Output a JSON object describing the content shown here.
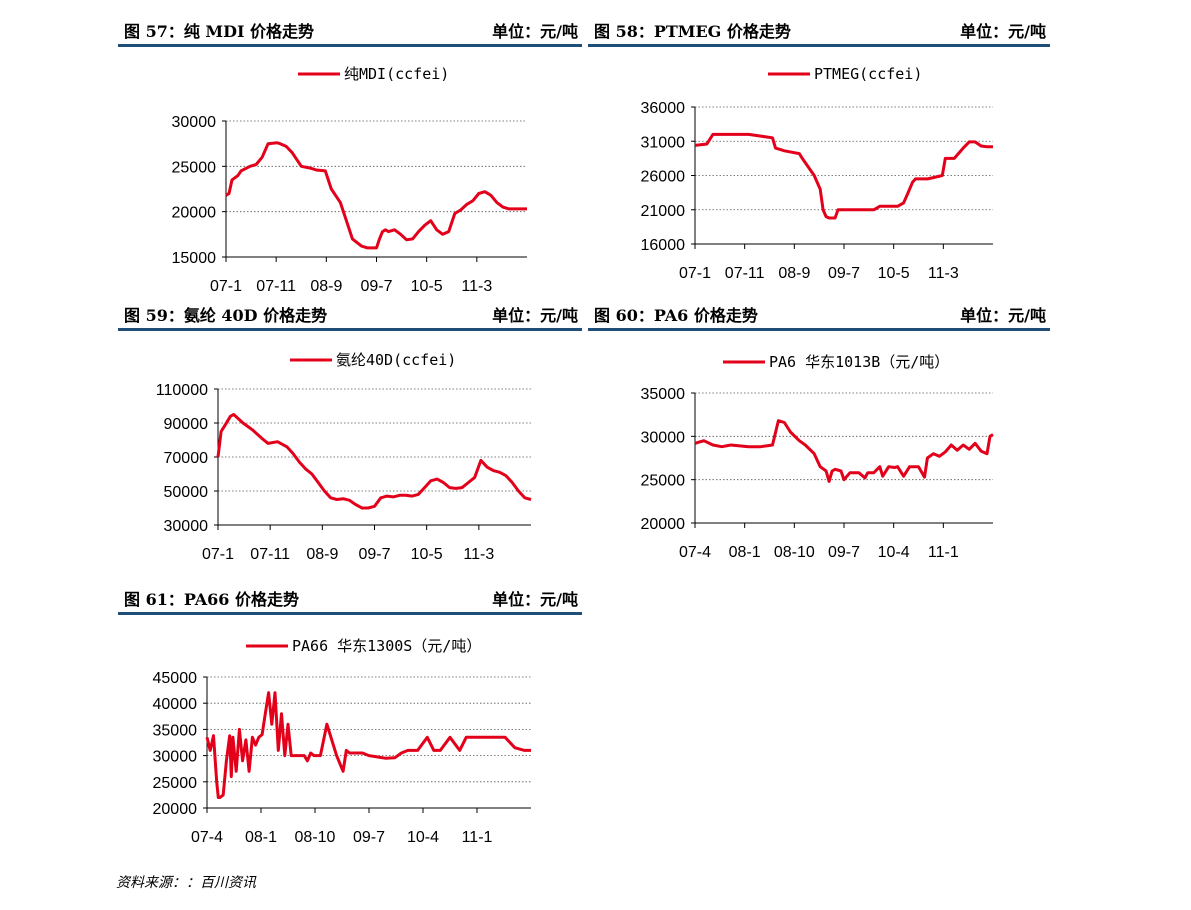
{
  "source": "资料来源：：百川资讯",
  "line_color": "#e3001b",
  "header_rule_color": "#1f4e79",
  "charts": {
    "c57": {
      "title": "图 57：纯 MDI 价格走势",
      "unit": "单位：元/吨",
      "chart_data": {
        "type": "line",
        "series": [
          {
            "name": "纯MDI(ccfei)"
          }
        ],
        "yticks": [
          "30000",
          "25000",
          "20000",
          "15000"
        ],
        "ylim": [
          15000,
          30000
        ],
        "xticks": [
          "07-1",
          "07-11",
          "08-9",
          "09-7",
          "10-5",
          "11-3"
        ],
        "x": [
          0,
          1,
          2,
          4,
          5,
          8,
          10,
          12,
          14,
          17,
          18,
          20,
          22,
          25,
          28,
          30,
          33,
          35,
          38,
          40,
          42,
          45,
          47,
          50,
          51,
          52,
          53,
          54,
          56,
          58,
          60,
          62,
          64,
          66,
          68,
          70,
          72,
          74,
          76,
          78,
          80,
          82,
          84,
          86,
          88,
          90,
          92,
          94,
          96,
          98,
          100
        ],
        "y": [
          21800,
          22000,
          23500,
          24000,
          24500,
          25000,
          25200,
          26000,
          27500,
          27600,
          27500,
          27200,
          26500,
          25000,
          24800,
          24600,
          24500,
          22500,
          21000,
          19000,
          17000,
          16200,
          16000,
          16000,
          17000,
          17800,
          18000,
          17800,
          18000,
          17500,
          16900,
          17000,
          17800,
          18500,
          19000,
          18000,
          17500,
          17800,
          19800,
          20200,
          20800,
          21200,
          22000,
          22200,
          21800,
          21000,
          20500,
          20300,
          20300,
          20300,
          20300
        ]
      }
    },
    "c58": {
      "title": "图 58：PTMEG 价格走势",
      "unit": "单位：元/吨",
      "chart_data": {
        "type": "line",
        "series": [
          {
            "name": "PTMEG(ccfei)"
          }
        ],
        "yticks": [
          "36000",
          "31000",
          "26000",
          "21000",
          "16000"
        ],
        "ylim": [
          16000,
          36000
        ],
        "xticks": [
          "07-1",
          "07-11",
          "08-9",
          "09-7",
          "10-5",
          "11-3"
        ],
        "x": [
          0,
          4,
          6,
          10,
          18,
          26,
          27,
          30,
          35,
          36,
          40,
          42,
          43,
          44,
          45,
          47,
          48,
          50,
          52,
          60,
          62,
          68,
          70,
          71,
          72,
          73,
          74,
          76,
          78,
          80,
          83,
          84,
          85,
          86,
          87,
          88,
          90,
          92,
          94,
          96,
          98,
          100
        ],
        "y": [
          30400,
          30600,
          32000,
          32000,
          32000,
          31500,
          30000,
          29600,
          29200,
          28500,
          26000,
          24000,
          21000,
          20000,
          19800,
          19800,
          21000,
          21000,
          21000,
          21000,
          21500,
          21500,
          22000,
          23000,
          24000,
          25000,
          25500,
          25500,
          25500,
          25700,
          26000,
          28500,
          28500,
          28500,
          28500,
          29000,
          30000,
          30900,
          30900,
          30300,
          30200,
          30200
        ]
      }
    },
    "c59": {
      "title": "图 59：氨纶 40D 价格走势",
      "unit": "单位：元/吨",
      "chart_data": {
        "type": "line",
        "series": [
          {
            "name": "氨纶40D(ccfei)"
          }
        ],
        "yticks": [
          "110000",
          "90000",
          "70000",
          "50000",
          "30000"
        ],
        "ylim": [
          30000,
          110000
        ],
        "xticks": [
          "07-1",
          "07-11",
          "08-9",
          "09-7",
          "10-5",
          "11-3"
        ],
        "x": [
          0,
          1,
          2,
          4,
          5,
          8,
          11,
          14,
          16,
          19,
          22,
          24,
          26,
          28,
          30,
          32,
          34,
          36,
          38,
          40,
          42,
          44,
          46,
          48,
          50,
          52,
          54,
          56,
          58,
          60,
          62,
          64,
          66,
          68,
          70,
          72,
          74,
          76,
          78,
          80,
          82,
          84,
          86,
          88,
          90,
          92,
          94,
          96,
          98,
          100
        ],
        "y": [
          70000,
          85000,
          88000,
          94000,
          95000,
          90000,
          86000,
          81000,
          78000,
          79000,
          76000,
          72000,
          67000,
          63000,
          60000,
          55000,
          50000,
          46000,
          45000,
          45500,
          44500,
          42000,
          40000,
          40000,
          41000,
          46000,
          47000,
          46500,
          47500,
          47500,
          47000,
          48000,
          52000,
          56000,
          57000,
          55000,
          52000,
          51500,
          52000,
          55000,
          58000,
          68000,
          64000,
          62000,
          61000,
          59000,
          55000,
          50000,
          46000,
          45000
        ]
      }
    },
    "c60": {
      "title": "图 60：PA6 价格走势",
      "unit": "单位：元/吨",
      "chart_data": {
        "type": "line",
        "series": [
          {
            "name": "PA6 华东1013B（元/吨）"
          }
        ],
        "yticks": [
          "35000",
          "30000",
          "25000",
          "20000"
        ],
        "ylim": [
          20000,
          35000
        ],
        "xticks": [
          "07-4",
          "08-1",
          "08-10",
          "09-7",
          "10-4",
          "11-1"
        ],
        "x": [
          0,
          3,
          6,
          9,
          12,
          15,
          18,
          22,
          26,
          28,
          30,
          32,
          35,
          37,
          40,
          42,
          44,
          45,
          46,
          47,
          49,
          50,
          52,
          55,
          57,
          58,
          60,
          62,
          63,
          65,
          67,
          68,
          70,
          72,
          75,
          77,
          78,
          80,
          82,
          84,
          86,
          88,
          90,
          92,
          94,
          96,
          98,
          99,
          100
        ],
        "y": [
          29200,
          29500,
          29000,
          28800,
          29000,
          28900,
          28800,
          28800,
          29000,
          31800,
          31600,
          30500,
          29500,
          29000,
          28000,
          26500,
          26000,
          24800,
          26000,
          26200,
          26000,
          25000,
          25800,
          25800,
          25200,
          25800,
          25800,
          26500,
          25400,
          26500,
          26400,
          26500,
          25400,
          26500,
          26500,
          25300,
          27500,
          28000,
          27700,
          28200,
          29000,
          28400,
          29000,
          28500,
          29200,
          28300,
          28000,
          30000,
          30200
        ]
      }
    },
    "c61": {
      "title": "图 61：PA66 价格走势",
      "unit": "单位：元/吨",
      "chart_data": {
        "type": "line",
        "series": [
          {
            "name": "PA66 华东1300S（元/吨）"
          }
        ],
        "yticks": [
          "45000",
          "40000",
          "35000",
          "30000",
          "25000",
          "20000"
        ],
        "ylim": [
          20000,
          45000
        ],
        "xticks": [
          "07-4",
          "08-1",
          "08-10",
          "09-7",
          "10-4",
          "11-1"
        ],
        "x": [
          0,
          1,
          2,
          3,
          3.5,
          4,
          5,
          6,
          7,
          7.5,
          8,
          9,
          10,
          11,
          12,
          13,
          14,
          15,
          16,
          17,
          18,
          19,
          20,
          21,
          22,
          23,
          24,
          25,
          26,
          27,
          28,
          29,
          30,
          31,
          32,
          33,
          35,
          37,
          40,
          42,
          43,
          44,
          45,
          46,
          47,
          48,
          50,
          52,
          55,
          58,
          60,
          62,
          65,
          68,
          70,
          72,
          75,
          78,
          80,
          85,
          90,
          92,
          95,
          98,
          100
        ],
        "y": [
          33500,
          31000,
          33800,
          25000,
          22000,
          22000,
          22500,
          29000,
          33800,
          26000,
          33500,
          27000,
          35000,
          29000,
          33000,
          27000,
          33500,
          32000,
          33500,
          34000,
          38000,
          42000,
          36000,
          42000,
          31000,
          38000,
          30000,
          36000,
          30000,
          30000,
          30000,
          30000,
          30000,
          29000,
          30500,
          30000,
          30000,
          36000,
          30000,
          27000,
          31000,
          30500,
          30500,
          30500,
          30500,
          30500,
          30000,
          29800,
          29500,
          29600,
          30500,
          31000,
          31000,
          33500,
          31000,
          31000,
          33500,
          31000,
          33500,
          33500,
          33500,
          33500,
          31500,
          31000,
          31000
        ]
      }
    }
  }
}
